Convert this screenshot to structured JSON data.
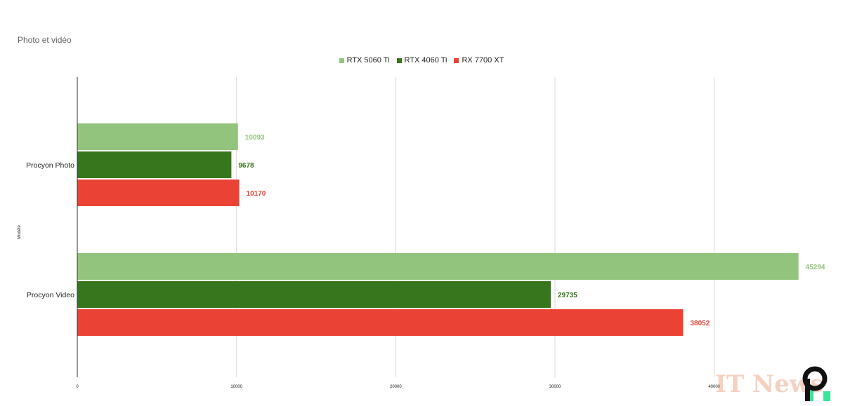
{
  "colors": {
    "rtx5060ti": "#93c47d",
    "rtx4060ti": "#38761d",
    "rx7700xt": "#ea4335",
    "grid": "#d9d9d9",
    "axis": "#333333"
  },
  "chart_data": {
    "type": "bar",
    "orientation": "horizontal",
    "title": "Photo et vidéo",
    "ylabel": "Modèle",
    "xlabel": "",
    "categories": [
      "Procyon Photo",
      "Procyon Video"
    ],
    "series": [
      {
        "name": "RTX 5060 Ti",
        "color": "#93c47d",
        "values": [
          10093,
          45294
        ]
      },
      {
        "name": "RTX 4060 Ti",
        "color": "#38761d",
        "values": [
          9678,
          29735
        ]
      },
      {
        "name": "RX 7700 XT",
        "color": "#ea4335",
        "values": [
          10170,
          38052
        ]
      }
    ],
    "xlim": [
      0,
      48000
    ],
    "x_ticks": [
      "0",
      "10000",
      "20000",
      "30000",
      "40000"
    ],
    "grid": true,
    "legend_position": "top-center",
    "data_labels": true
  },
  "watermark": {
    "text": "IT News",
    "logo": "p-logo-icon"
  }
}
